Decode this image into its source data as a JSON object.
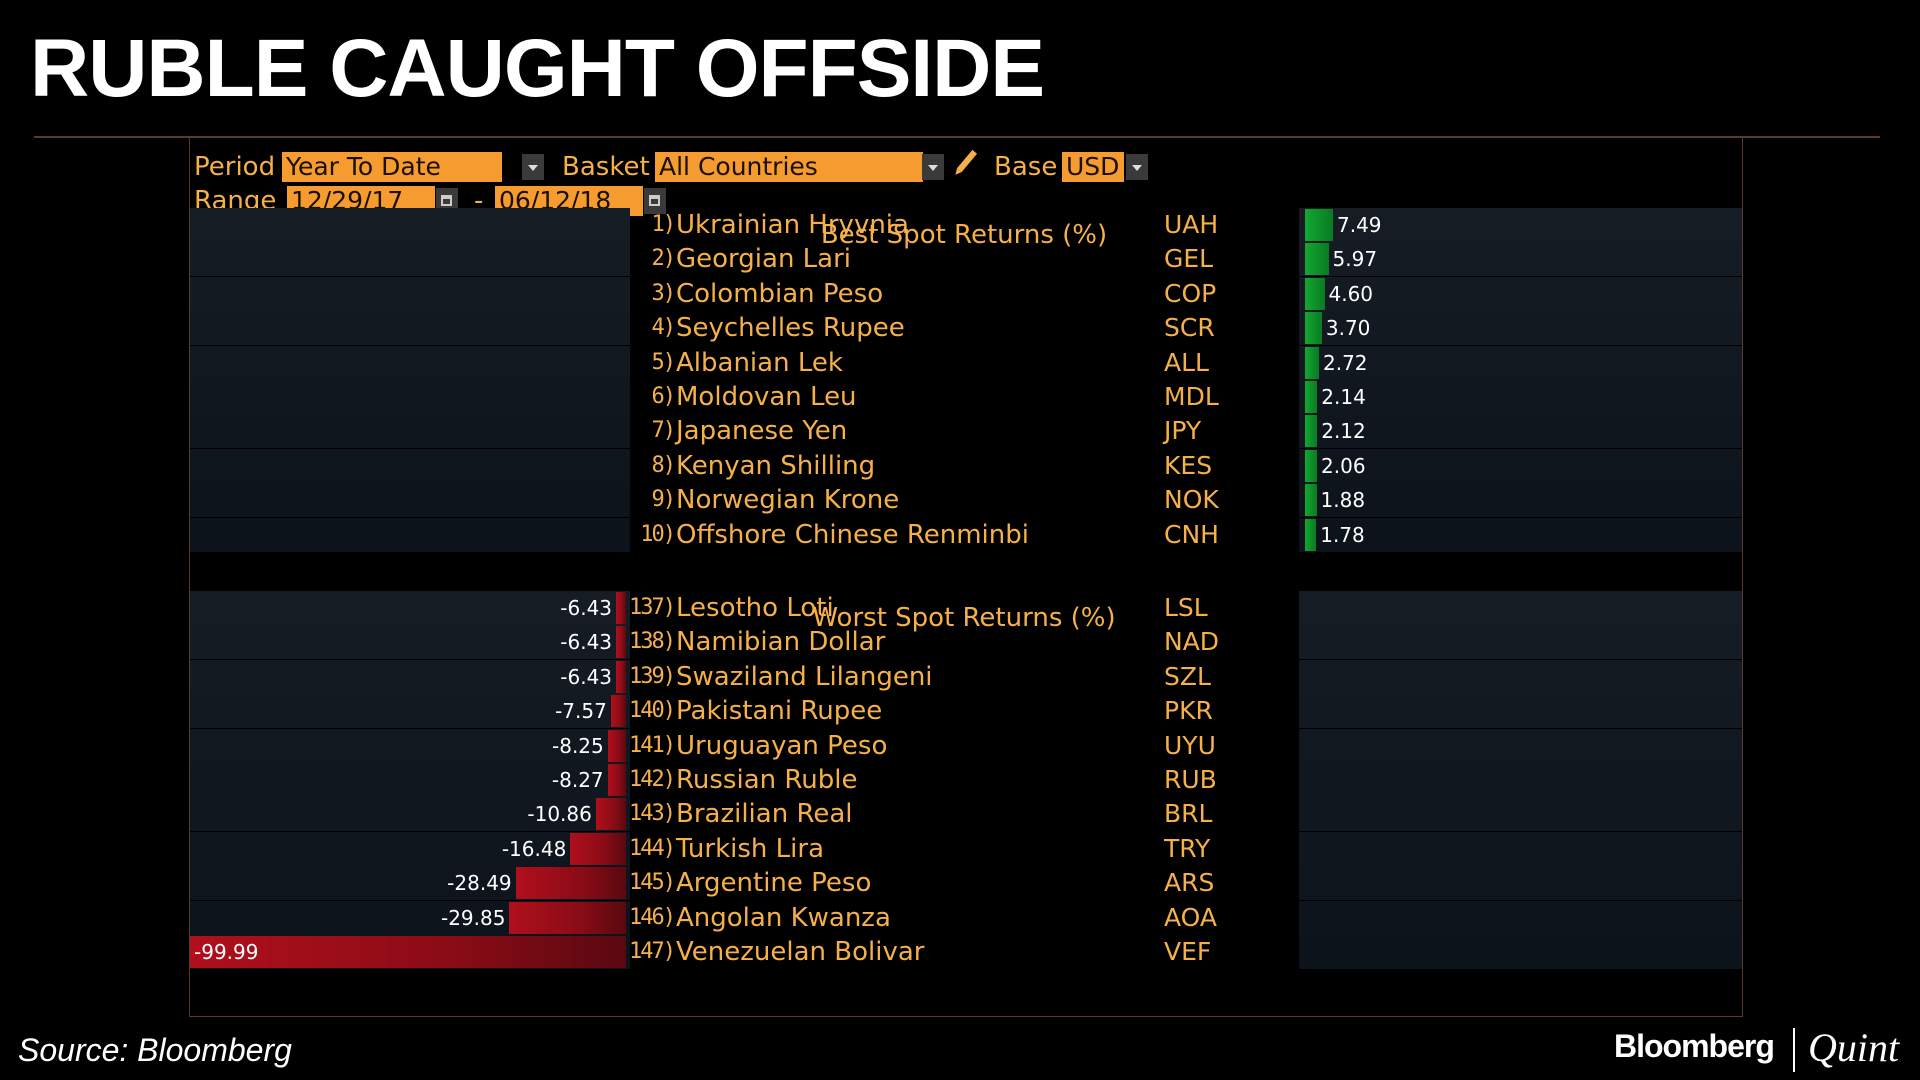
{
  "headline": "RUBLE CAUGHT OFFSIDE",
  "controls": {
    "period_label": "Period",
    "period_value": "Year To Date",
    "basket_label": "Basket",
    "basket_value": "All Countries",
    "base_label": "Base",
    "base_value": "USD",
    "range_label": "Range",
    "range_start": "12/29/17",
    "range_sep": "-",
    "range_end": "06/12/18"
  },
  "footer": {
    "source": "Source: Bloomberg",
    "logo_left": "Bloomberg",
    "logo_right": "Quint"
  },
  "colors": {
    "positive": "#11a831",
    "negative": "#b00f1c",
    "label": "#f5b04a"
  },
  "chart_data": {
    "type": "bar",
    "best_title": "Best Spot Returns (%)",
    "worst_title": "Worst Spot Returns (%)",
    "best": [
      {
        "rank": "1)",
        "name": "Ukrainian Hryvnia",
        "code": "UAH",
        "value": 7.49,
        "label": "7.49"
      },
      {
        "rank": "2)",
        "name": "Georgian Lari",
        "code": "GEL",
        "value": 5.97,
        "label": "5.97"
      },
      {
        "rank": "3)",
        "name": "Colombian Peso",
        "code": "COP",
        "value": 4.6,
        "label": "4.60"
      },
      {
        "rank": "4)",
        "name": "Seychelles Rupee",
        "code": "SCR",
        "value": 3.7,
        "label": "3.70"
      },
      {
        "rank": "5)",
        "name": "Albanian Lek",
        "code": "ALL",
        "value": 2.72,
        "label": "2.72"
      },
      {
        "rank": "6)",
        "name": "Moldovan Leu",
        "code": "MDL",
        "value": 2.14,
        "label": "2.14"
      },
      {
        "rank": "7)",
        "name": "Japanese Yen",
        "code": "JPY",
        "value": 2.12,
        "label": "2.12"
      },
      {
        "rank": "8)",
        "name": "Kenyan Shilling",
        "code": "KES",
        "value": 2.06,
        "label": "2.06"
      },
      {
        "rank": "9)",
        "name": "Norwegian Krone",
        "code": "NOK",
        "value": 1.88,
        "label": "1.88"
      },
      {
        "rank": "10)",
        "name": "Offshore Chinese Renminbi",
        "code": "CNH",
        "value": 1.78,
        "label": "1.78"
      }
    ],
    "worst": [
      {
        "rank": "137)",
        "name": "Lesotho Loti",
        "code": "LSL",
        "value": -6.43,
        "label": "-6.43"
      },
      {
        "rank": "138)",
        "name": "Namibian Dollar",
        "code": "NAD",
        "value": -6.43,
        "label": "-6.43"
      },
      {
        "rank": "139)",
        "name": "Swaziland Lilangeni",
        "code": "SZL",
        "value": -6.43,
        "label": "-6.43"
      },
      {
        "rank": "140)",
        "name": "Pakistani Rupee",
        "code": "PKR",
        "value": -7.57,
        "label": "-7.57"
      },
      {
        "rank": "141)",
        "name": "Uruguayan Peso",
        "code": "UYU",
        "value": -8.25,
        "label": "-8.25"
      },
      {
        "rank": "142)",
        "name": "Russian Ruble",
        "code": "RUB",
        "value": -8.27,
        "label": "-8.27"
      },
      {
        "rank": "143)",
        "name": "Brazilian Real",
        "code": "BRL",
        "value": -10.86,
        "label": "-10.86"
      },
      {
        "rank": "144)",
        "name": "Turkish Lira",
        "code": "TRY",
        "value": -16.48,
        "label": "-16.48"
      },
      {
        "rank": "145)",
        "name": "Argentine Peso",
        "code": "ARS",
        "value": -28.49,
        "label": "-28.49"
      },
      {
        "rank": "146)",
        "name": "Angolan Kwanza",
        "code": "AOA",
        "value": -29.85,
        "label": "-29.85"
      },
      {
        "rank": "147)",
        "name": "Venezuelan Bolivar",
        "code": "VEF",
        "value": -99.99,
        "label": "-99.99"
      }
    ]
  }
}
